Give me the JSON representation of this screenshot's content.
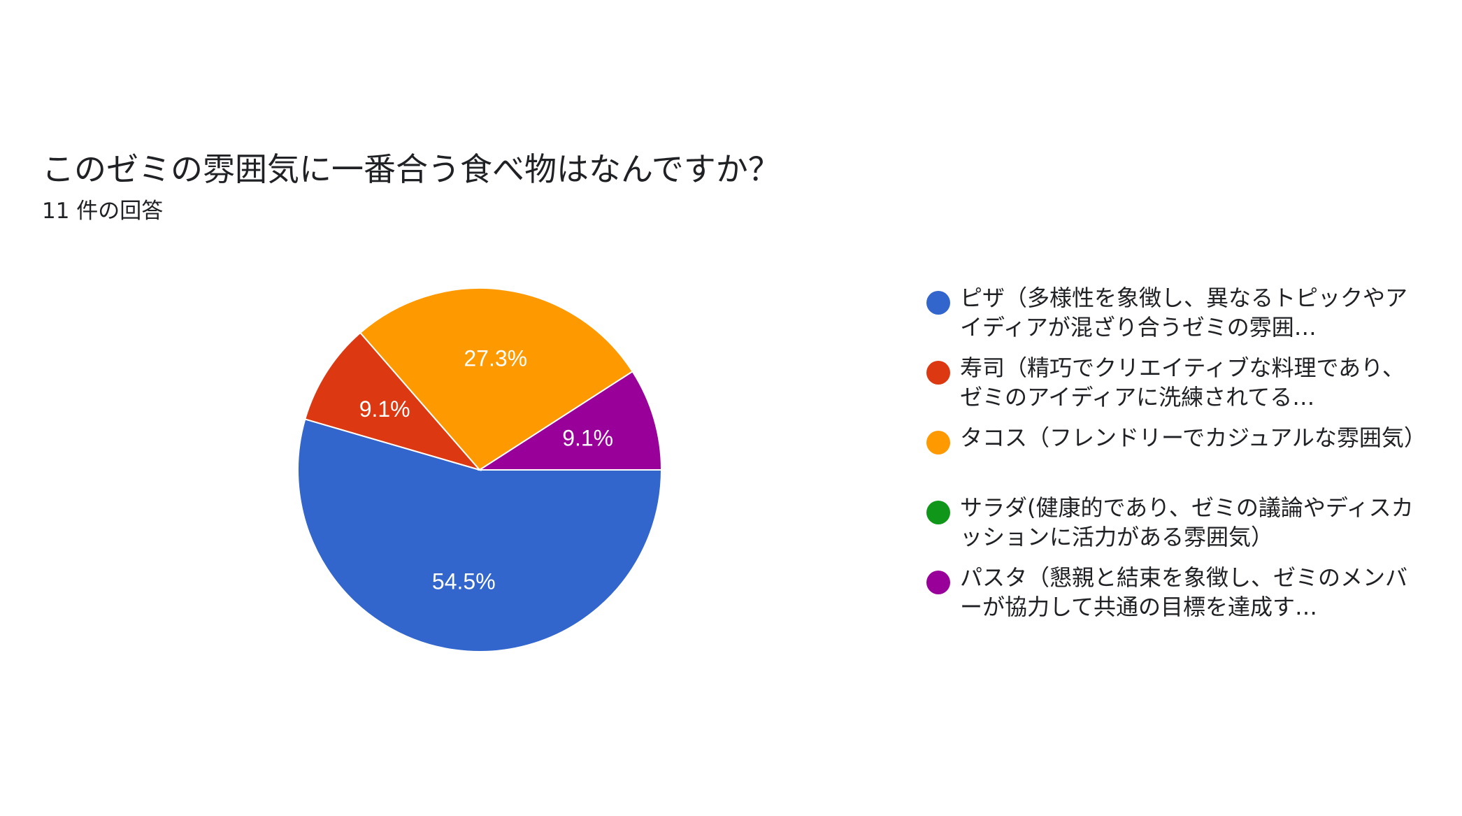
{
  "chart_data": {
    "type": "pie",
    "title": "このゼミの雰囲気に一番合う食べ物はなんですか？",
    "subtitle": "11 件の回答",
    "legend_position": "right",
    "slices": [
      {
        "name": "ピザ（多様性を象徴し、異なるトピックやアイディアが混ざり合うゼミの雰囲…",
        "value": 54.5,
        "label": "54.5%",
        "color": "#3366cc"
      },
      {
        "name": "寿司（精巧でクリエイティブな料理であり、ゼミのアイディアに洗練されてる…",
        "value": 9.1,
        "label": "9.1%",
        "color": "#dc3912"
      },
      {
        "name": "タコス（フレンドリーでカジュアルな雰囲気）",
        "value": 27.3,
        "label": "27.3%",
        "color": "#ff9900"
      },
      {
        "name": "サラダ(健康的であり、ゼミの議論やディスカッションに活力がある雰囲気）",
        "value": 0,
        "label": "",
        "color": "#109618"
      },
      {
        "name": "パスタ（懇親と結束を象徴し、ゼミのメンバーが協力して共通の目標を達成す…",
        "value": 9.1,
        "label": "9.1%",
        "color": "#990099"
      }
    ]
  }
}
